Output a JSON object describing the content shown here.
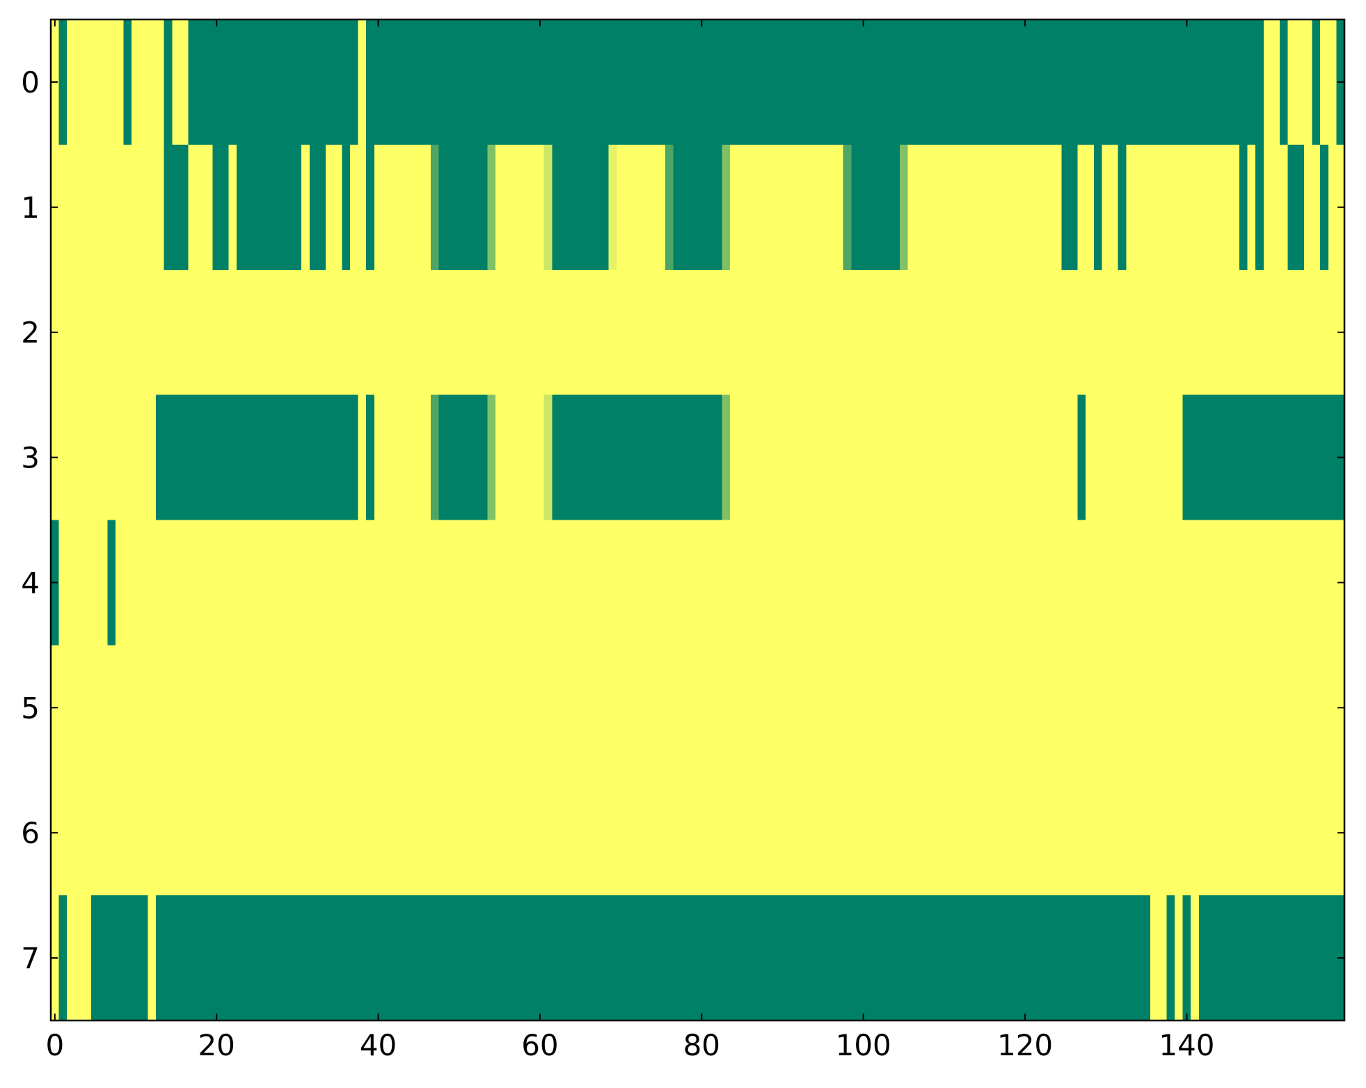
{
  "chart_data": {
    "type": "heatmap",
    "colormap": [
      "#008066",
      "#ffff66"
    ],
    "xlim": [
      -0.5,
      159.5
    ],
    "ylim": [
      7.5,
      -0.5
    ],
    "xticks": [
      0,
      20,
      40,
      60,
      80,
      100,
      120,
      140
    ],
    "yticks": [
      0,
      1,
      2,
      3,
      4,
      5,
      6,
      7
    ],
    "z": [
      [
        1,
        0,
        1,
        1,
        1,
        1,
        1,
        1,
        1,
        0,
        1,
        1,
        1,
        1,
        0,
        1,
        1,
        0,
        0,
        0,
        0,
        0,
        0,
        0,
        0,
        0,
        0,
        0,
        0,
        0,
        0,
        0,
        0,
        0,
        0,
        0,
        0,
        0,
        1,
        0,
        0,
        0,
        0,
        0,
        0,
        0,
        0,
        0,
        0,
        0,
        0,
        0,
        0,
        0,
        0,
        0,
        0,
        0,
        0,
        0,
        0,
        0,
        0,
        0,
        0,
        0,
        0,
        0,
        0,
        0,
        0,
        0,
        0,
        0,
        0,
        0,
        0,
        0,
        0,
        0,
        0,
        0,
        0,
        0,
        0,
        0,
        0,
        0,
        0,
        0,
        0,
        0,
        0,
        0,
        0,
        0,
        0,
        0,
        0,
        0,
        0,
        0,
        0,
        0,
        0,
        0,
        0,
        0,
        0,
        0,
        0,
        0,
        0,
        0,
        0,
        0,
        0,
        0,
        0,
        0,
        0,
        0,
        0,
        0,
        0,
        0,
        0,
        0,
        0,
        0,
        0,
        0,
        0,
        0,
        0,
        0,
        0,
        0,
        0,
        0,
        0,
        0,
        0,
        0,
        0,
        0,
        0,
        0,
        0,
        0,
        1,
        1,
        0,
        1,
        1,
        1,
        0,
        1,
        1,
        0
      ],
      [
        1,
        1,
        1,
        1,
        1,
        1,
        1,
        1,
        1,
        1,
        1,
        1,
        1,
        1,
        0,
        0,
        0,
        1,
        1,
        1,
        0,
        0,
        1,
        0,
        0,
        0,
        0,
        0,
        0,
        0,
        0,
        1,
        0,
        0,
        1,
        1,
        0,
        1,
        1,
        0,
        1,
        1,
        1,
        1,
        1,
        1,
        1,
        0.3,
        0,
        0,
        0,
        0,
        0,
        0,
        0.5,
        1,
        1,
        1,
        1,
        1,
        1,
        0.8,
        0,
        0,
        0,
        0,
        0,
        0,
        0,
        0.9,
        1,
        1,
        1,
        1,
        1,
        1,
        0.3,
        0,
        0,
        0,
        0,
        0,
        0,
        0.5,
        1,
        1,
        1,
        1,
        1,
        1,
        1,
        1,
        1,
        1,
        1,
        1,
        1,
        1,
        0.3,
        0,
        0,
        0,
        0,
        0,
        0,
        0.5,
        1,
        1,
        1,
        1,
        1,
        1,
        1,
        1,
        1,
        1,
        1,
        1,
        1,
        1,
        1,
        1,
        1,
        1,
        1,
        0,
        0,
        1,
        1,
        0,
        1,
        1,
        0,
        1,
        1,
        1,
        1,
        1,
        1,
        1,
        1,
        1,
        1,
        1,
        1,
        1,
        1,
        0,
        1,
        0,
        1,
        1,
        1,
        0,
        0,
        1,
        1,
        0,
        1,
        1
      ],
      [
        1,
        1,
        1,
        1,
        1,
        1,
        1,
        1,
        1,
        1,
        1,
        1,
        1,
        1,
        1,
        1,
        1,
        1,
        1,
        1,
        1,
        1,
        1,
        1,
        1,
        1,
        1,
        1,
        1,
        1,
        1,
        1,
        1,
        1,
        1,
        1,
        1,
        1,
        1,
        1,
        1,
        1,
        1,
        1,
        1,
        1,
        1,
        1,
        1,
        1,
        1,
        1,
        1,
        1,
        1,
        1,
        1,
        1,
        1,
        1,
        1,
        1,
        1,
        1,
        1,
        1,
        1,
        1,
        1,
        1,
        1,
        1,
        1,
        1,
        1,
        1,
        1,
        1,
        1,
        1,
        1,
        1,
        1,
        1,
        1,
        1,
        1,
        1,
        1,
        1,
        1,
        1,
        1,
        1,
        1,
        1,
        1,
        1,
        1,
        1,
        1,
        1,
        1,
        1,
        1,
        1,
        1,
        1,
        1,
        1,
        1,
        1,
        1,
        1,
        1,
        1,
        1,
        1,
        1,
        1,
        1,
        1,
        1,
        1,
        1,
        1,
        1,
        1,
        1,
        1,
        1,
        1,
        1,
        1,
        1,
        1,
        1,
        1,
        1,
        1,
        1,
        1,
        1,
        1,
        1,
        1,
        1,
        1,
        1,
        1,
        1,
        1,
        1,
        1,
        1,
        1,
        1,
        1,
        1,
        1
      ],
      [
        1,
        1,
        1,
        1,
        1,
        1,
        1,
        1,
        1,
        1,
        1,
        1,
        1,
        0,
        0,
        0,
        0,
        0,
        0,
        0,
        0,
        0,
        0,
        0,
        0,
        0,
        0,
        0,
        0,
        0,
        0,
        0,
        0,
        0,
        0,
        0,
        0,
        0,
        1,
        0,
        1,
        1,
        1,
        1,
        1,
        1,
        1,
        0.3,
        0,
        0,
        0,
        0,
        0,
        0,
        0.5,
        1,
        1,
        1,
        1,
        1,
        1,
        0.8,
        0,
        0,
        0,
        0,
        0,
        0,
        0,
        0,
        0,
        0,
        0,
        0,
        0,
        0,
        0,
        0,
        0,
        0,
        0,
        0,
        0,
        0.5,
        1,
        1,
        1,
        1,
        1,
        1,
        1,
        1,
        1,
        1,
        1,
        1,
        1,
        1,
        1,
        1,
        1,
        1,
        1,
        1,
        1,
        1,
        1,
        1,
        1,
        1,
        1,
        1,
        1,
        1,
        1,
        1,
        1,
        1,
        1,
        1,
        1,
        1,
        1,
        1,
        1,
        1,
        1,
        0,
        1,
        1,
        1,
        1,
        1,
        1,
        1,
        1,
        1,
        1,
        1,
        1,
        0,
        0,
        0,
        0,
        0,
        0,
        0,
        0,
        0,
        0,
        0,
        0,
        0,
        0,
        0,
        0,
        0,
        0,
        0,
        0
      ],
      [
        0,
        1,
        1,
        1,
        1,
        1,
        1,
        0,
        1,
        1,
        1,
        1,
        1,
        1,
        1,
        1,
        1,
        1,
        1,
        1,
        1,
        1,
        1,
        1,
        1,
        1,
        1,
        1,
        1,
        1,
        1,
        1,
        1,
        1,
        1,
        1,
        1,
        1,
        1,
        1,
        1,
        1,
        1,
        1,
        1,
        1,
        1,
        1,
        1,
        1,
        1,
        1,
        1,
        1,
        1,
        1,
        1,
        1,
        1,
        1,
        1,
        1,
        1,
        1,
        1,
        1,
        1,
        1,
        1,
        1,
        1,
        1,
        1,
        1,
        1,
        1,
        1,
        1,
        1,
        1,
        1,
        1,
        1,
        1,
        1,
        1,
        1,
        1,
        1,
        1,
        1,
        1,
        1,
        1,
        1,
        1,
        1,
        1,
        1,
        1,
        1,
        1,
        1,
        1,
        1,
        1,
        1,
        1,
        1,
        1,
        1,
        1,
        1,
        1,
        1,
        1,
        1,
        1,
        1,
        1,
        1,
        1,
        1,
        1,
        1,
        1,
        1,
        1,
        1,
        1,
        1,
        1,
        1,
        1,
        1,
        1,
        1,
        1,
        1,
        1,
        1,
        1,
        1,
        1,
        1,
        1,
        1,
        1,
        1,
        1,
        1,
        1,
        1,
        1,
        1,
        1,
        1,
        1,
        1,
        1
      ],
      [
        1,
        1,
        1,
        1,
        1,
        1,
        1,
        1,
        1,
        1,
        1,
        1,
        1,
        1,
        1,
        1,
        1,
        1,
        1,
        1,
        1,
        1,
        1,
        1,
        1,
        1,
        1,
        1,
        1,
        1,
        1,
        1,
        1,
        1,
        1,
        1,
        1,
        1,
        1,
        1,
        1,
        1,
        1,
        1,
        1,
        1,
        1,
        1,
        1,
        1,
        1,
        1,
        1,
        1,
        1,
        1,
        1,
        1,
        1,
        1,
        1,
        1,
        1,
        1,
        1,
        1,
        1,
        1,
        1,
        1,
        1,
        1,
        1,
        1,
        1,
        1,
        1,
        1,
        1,
        1,
        1,
        1,
        1,
        1,
        1,
        1,
        1,
        1,
        1,
        1,
        1,
        1,
        1,
        1,
        1,
        1,
        1,
        1,
        1,
        1,
        1,
        1,
        1,
        1,
        1,
        1,
        1,
        1,
        1,
        1,
        1,
        1,
        1,
        1,
        1,
        1,
        1,
        1,
        1,
        1,
        1,
        1,
        1,
        1,
        1,
        1,
        1,
        1,
        1,
        1,
        1,
        1,
        1,
        1,
        1,
        1,
        1,
        1,
        1,
        1,
        1,
        1,
        1,
        1,
        1,
        1,
        1,
        1,
        1,
        1,
        1,
        1,
        1,
        1,
        1,
        1,
        1,
        1,
        1,
        1
      ],
      [
        1,
        1,
        1,
        1,
        1,
        1,
        1,
        1,
        1,
        1,
        1,
        1,
        1,
        1,
        1,
        1,
        1,
        1,
        1,
        1,
        1,
        1,
        1,
        1,
        1,
        1,
        1,
        1,
        1,
        1,
        1,
        1,
        1,
        1,
        1,
        1,
        1,
        1,
        1,
        1,
        1,
        1,
        1,
        1,
        1,
        1,
        1,
        1,
        1,
        1,
        1,
        1,
        1,
        1,
        1,
        1,
        1,
        1,
        1,
        1,
        1,
        1,
        1,
        1,
        1,
        1,
        1,
        1,
        1,
        1,
        1,
        1,
        1,
        1,
        1,
        1,
        1,
        1,
        1,
        1,
        1,
        1,
        1,
        1,
        1,
        1,
        1,
        1,
        1,
        1,
        1,
        1,
        1,
        1,
        1,
        1,
        1,
        1,
        1,
        1,
        1,
        1,
        1,
        1,
        1,
        1,
        1,
        1,
        1,
        1,
        1,
        1,
        1,
        1,
        1,
        1,
        1,
        1,
        1,
        1,
        1,
        1,
        1,
        1,
        1,
        1,
        1,
        1,
        1,
        1,
        1,
        1,
        1,
        1,
        1,
        1,
        1,
        1,
        1,
        1,
        1,
        1,
        1,
        1,
        1,
        1,
        1,
        1,
        1,
        1,
        1,
        1,
        1,
        1,
        1,
        1,
        1,
        1,
        1,
        1
      ],
      [
        1,
        0,
        1,
        1,
        1,
        0,
        0,
        0,
        0,
        0,
        0,
        0,
        1,
        0,
        0,
        0,
        0,
        0,
        0,
        0,
        0,
        0,
        0,
        0,
        0,
        0,
        0,
        0,
        0,
        0,
        0,
        0,
        0,
        0,
        0,
        0,
        0,
        0,
        0,
        0,
        0,
        0,
        0,
        0,
        0,
        0,
        0,
        0,
        0,
        0,
        0,
        0,
        0,
        0,
        0,
        0,
        0,
        0,
        0,
        0,
        0,
        0,
        0,
        0,
        0,
        0,
        0,
        0,
        0,
        0,
        0,
        0,
        0,
        0,
        0,
        0,
        0,
        0,
        0,
        0,
        0,
        0,
        0,
        0,
        0,
        0,
        0,
        0,
        0,
        0,
        0,
        0,
        0,
        0,
        0,
        0,
        0,
        0,
        0,
        0,
        0,
        0,
        0,
        0,
        0,
        0,
        0,
        0,
        0,
        0,
        0,
        0,
        0,
        0,
        0,
        0,
        0,
        0,
        0,
        0,
        0,
        0,
        0,
        0,
        0,
        0,
        0,
        0,
        0,
        0,
        0,
        0,
        0,
        0,
        0,
        0,
        1,
        1,
        0,
        1,
        0,
        1,
        0,
        0,
        0,
        0,
        0,
        0,
        0,
        0,
        0,
        0,
        0,
        0,
        0,
        0,
        0,
        0,
        0,
        0
      ]
    ]
  }
}
